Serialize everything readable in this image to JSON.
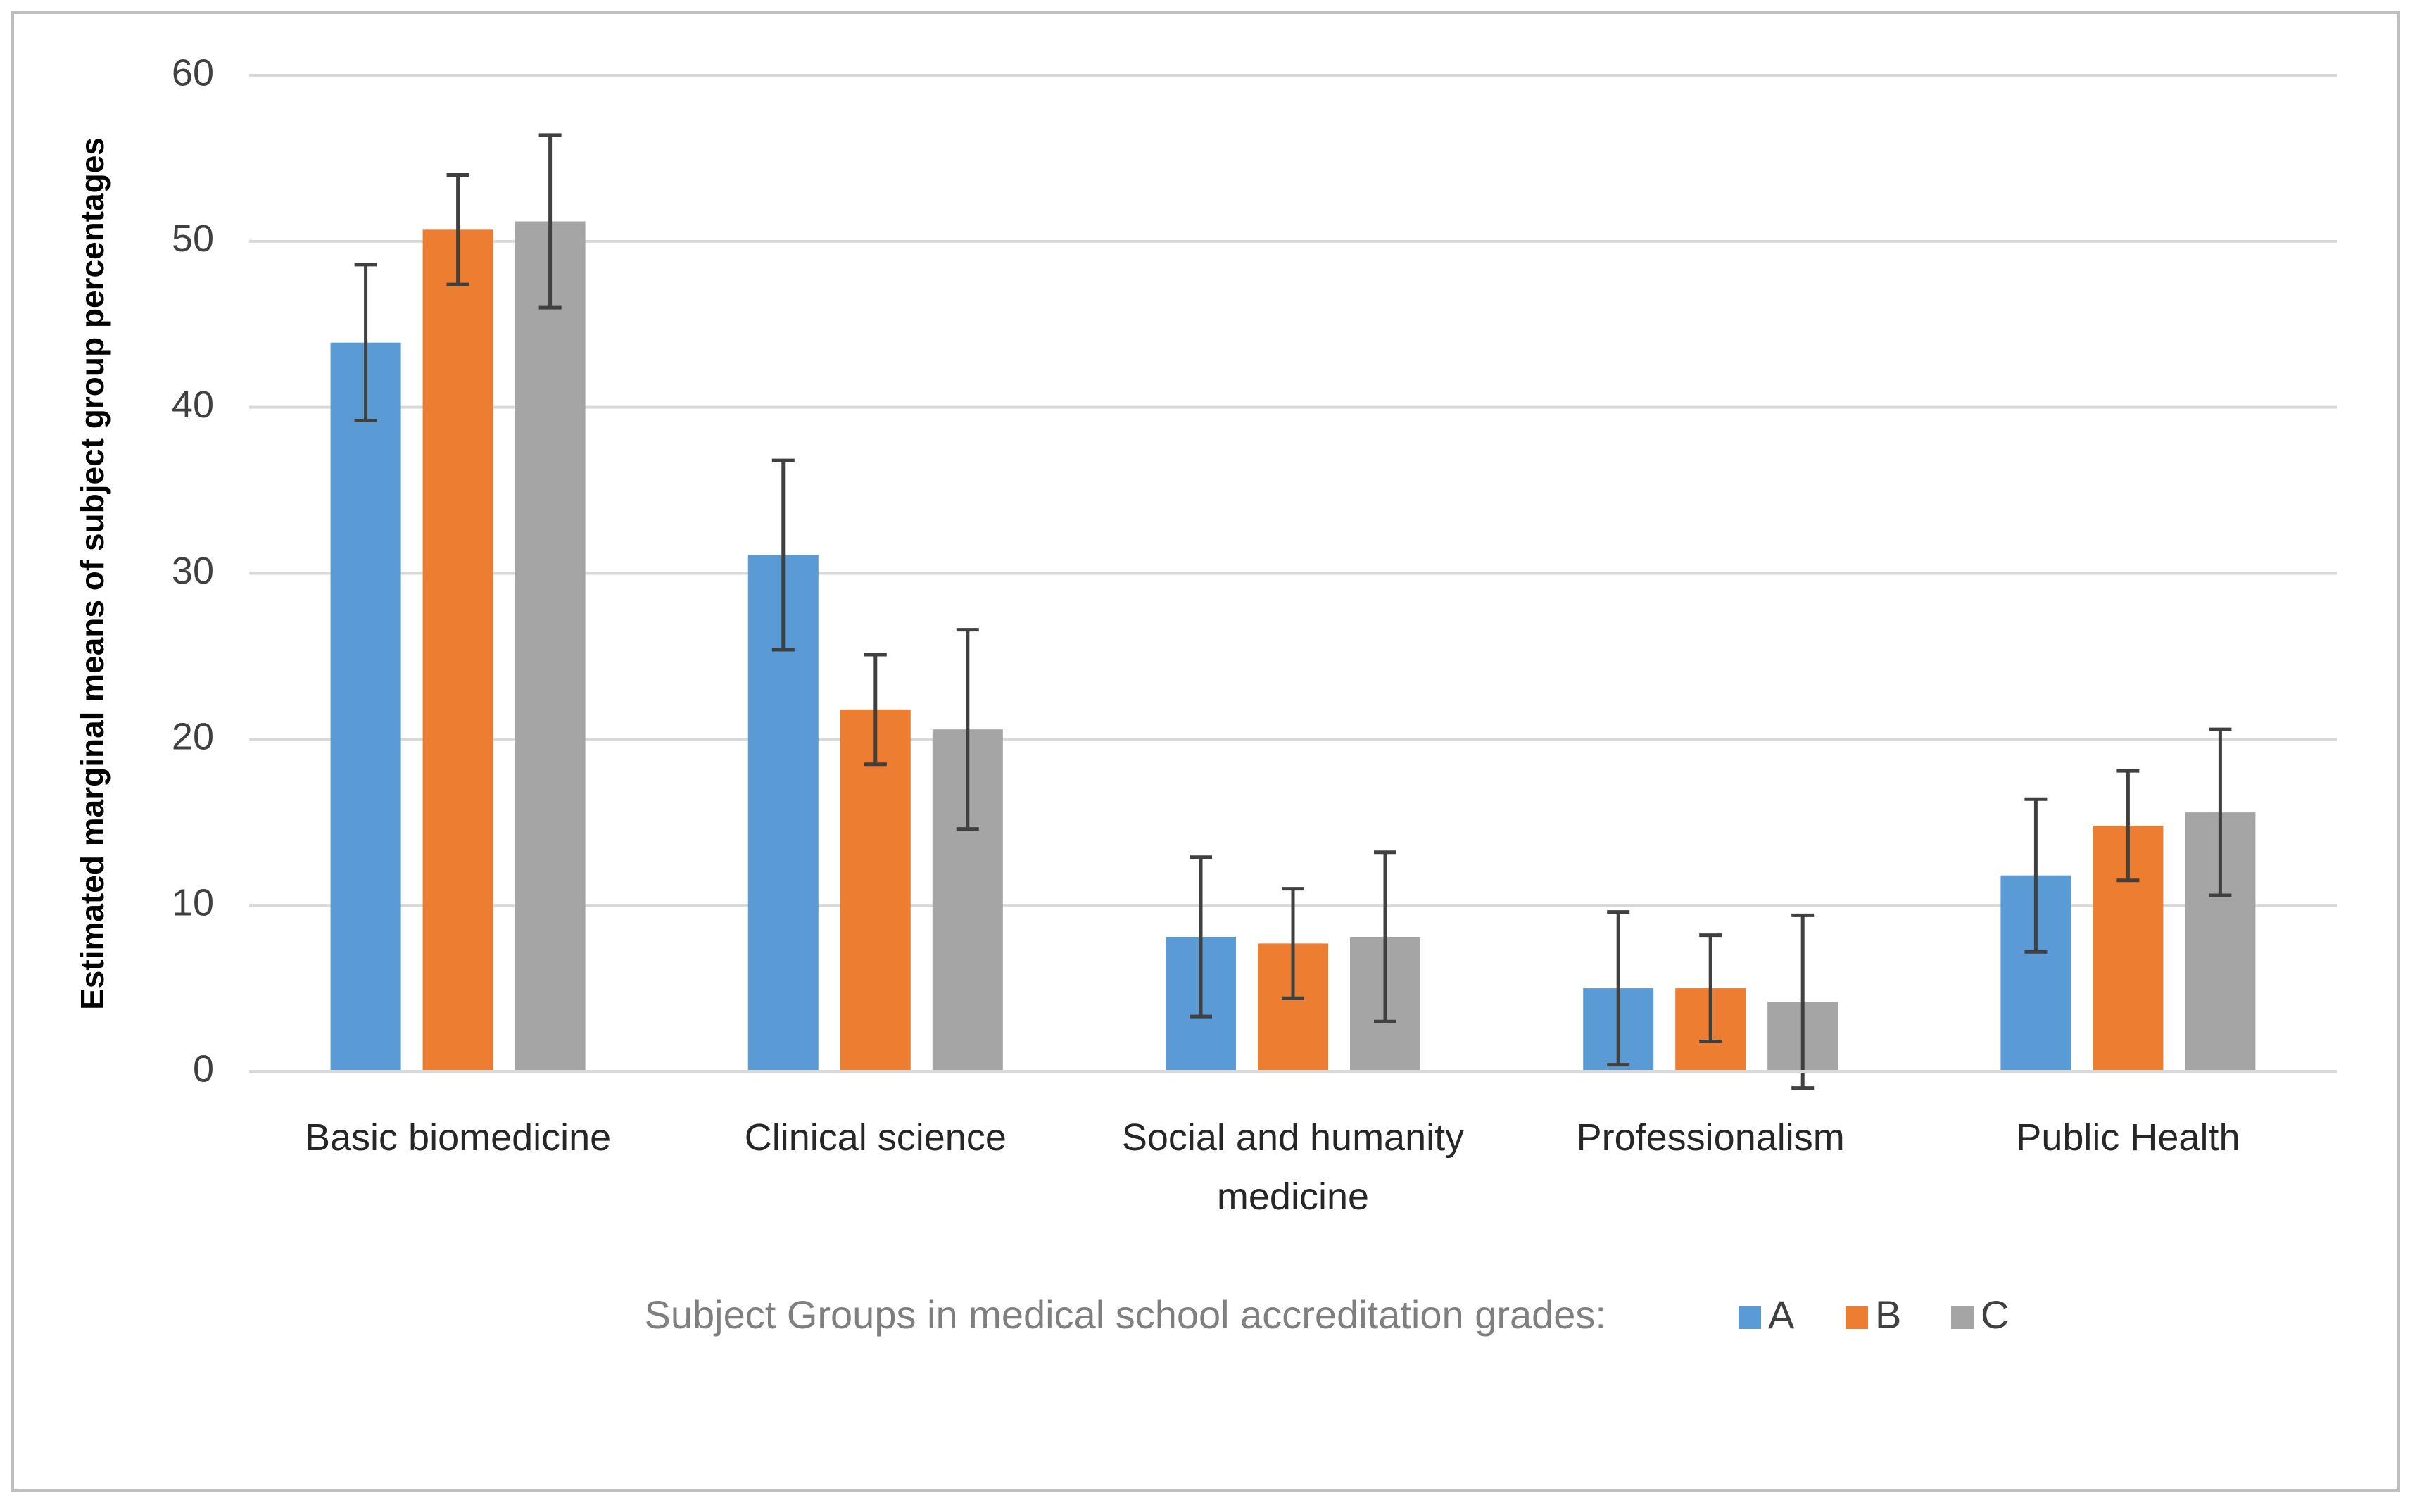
{
  "chart_data": {
    "type": "bar",
    "y_label": "Estimated marginal means of subject group percentages",
    "legend_title": "Subject Groups in medical school accreditation grades:",
    "categories": [
      "Basic biomedicine",
      "Clinical science",
      "Social and humanity medicine",
      "Professionalism",
      "Public Health"
    ],
    "series": [
      {
        "name": "A",
        "color": "#5b9bd5",
        "values": [
          43.9,
          31.1,
          8.1,
          5.0,
          11.8
        ],
        "errors": [
          4.7,
          5.7,
          4.8,
          4.6,
          4.6
        ]
      },
      {
        "name": "B",
        "color": "#ed7d31",
        "values": [
          50.7,
          21.8,
          7.7,
          5.0,
          14.8
        ],
        "errors": [
          3.3,
          3.3,
          3.3,
          3.2,
          3.3
        ]
      },
      {
        "name": "C",
        "color": "#a5a5a5",
        "values": [
          51.2,
          20.6,
          8.1,
          4.2,
          15.6
        ],
        "errors": [
          5.2,
          6.0,
          5.1,
          5.2,
          5.0
        ]
      }
    ],
    "ylim": [
      0,
      60
    ],
    "yticks": [
      0,
      10,
      20,
      30,
      40,
      50,
      60
    ],
    "grid": true
  }
}
